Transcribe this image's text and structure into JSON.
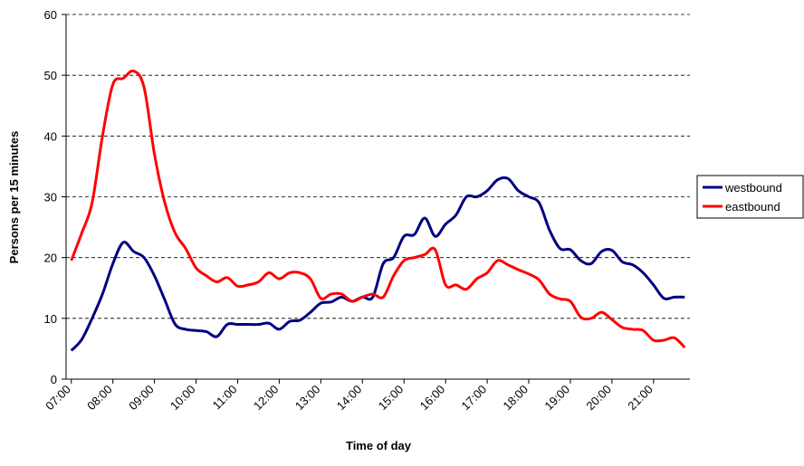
{
  "chart_data": {
    "type": "line",
    "x_label": "Time of day",
    "y_label": "Persons per 15 minutes",
    "categories": [
      "07:00",
      null,
      null,
      null,
      "08:00",
      null,
      null,
      null,
      "09:00",
      null,
      null,
      null,
      "10:00",
      null,
      null,
      null,
      "11:00",
      null,
      null,
      null,
      "12:00",
      null,
      null,
      null,
      "13:00",
      null,
      null,
      null,
      "14:00",
      null,
      null,
      null,
      "15:00",
      null,
      null,
      null,
      "16:00",
      null,
      null,
      null,
      "17:00",
      null,
      null,
      null,
      "18:00",
      null,
      null,
      null,
      "19:00",
      null,
      null,
      null,
      "20:00",
      null,
      null,
      null,
      "21:00",
      null,
      null,
      null
    ],
    "series": [
      {
        "name": "westbound",
        "color": "#000080",
        "values": [
          4.7,
          6.5,
          10,
          14,
          19,
          22.5,
          21,
          20,
          17,
          13,
          9,
          8.2,
          8,
          7.8,
          7,
          9,
          9,
          9,
          9,
          9.2,
          8.2,
          9.5,
          9.7,
          11,
          12.5,
          12.7,
          13.5,
          12.8,
          13.5,
          13.5,
          19,
          20,
          23.5,
          23.8,
          26.5,
          23.5,
          25.5,
          27,
          30,
          30,
          31,
          32.8,
          33,
          31,
          30,
          29,
          24.5,
          21.5,
          21.3,
          19.5,
          19,
          21,
          21.2,
          19.3,
          18.8,
          17.5,
          15.5,
          13.3,
          13.5,
          13.5
        ]
      },
      {
        "name": "eastbound",
        "color": "#ff0000",
        "values": [
          19.5,
          24,
          29,
          40,
          48.5,
          49.5,
          50.7,
          48,
          37,
          29,
          24,
          21.5,
          18.3,
          17,
          16,
          16.7,
          15.3,
          15.5,
          16,
          17.5,
          16.5,
          17.5,
          17.5,
          16.5,
          13.3,
          14,
          14,
          12.8,
          13.5,
          14,
          13.5,
          17,
          19.5,
          20,
          20.5,
          21.3,
          15.5,
          15.5,
          14.8,
          16.5,
          17.5,
          19.5,
          18.8,
          18,
          17.3,
          16.3,
          14,
          13.2,
          12.8,
          10.2,
          10,
          11,
          9.8,
          8.5,
          8.2,
          8,
          6.4,
          6.4,
          6.8,
          5.2
        ]
      }
    ],
    "ylim": [
      0,
      60
    ],
    "yticks": [
      0,
      10,
      20,
      30,
      40,
      50,
      60
    ],
    "grid": true,
    "legend": "right"
  }
}
